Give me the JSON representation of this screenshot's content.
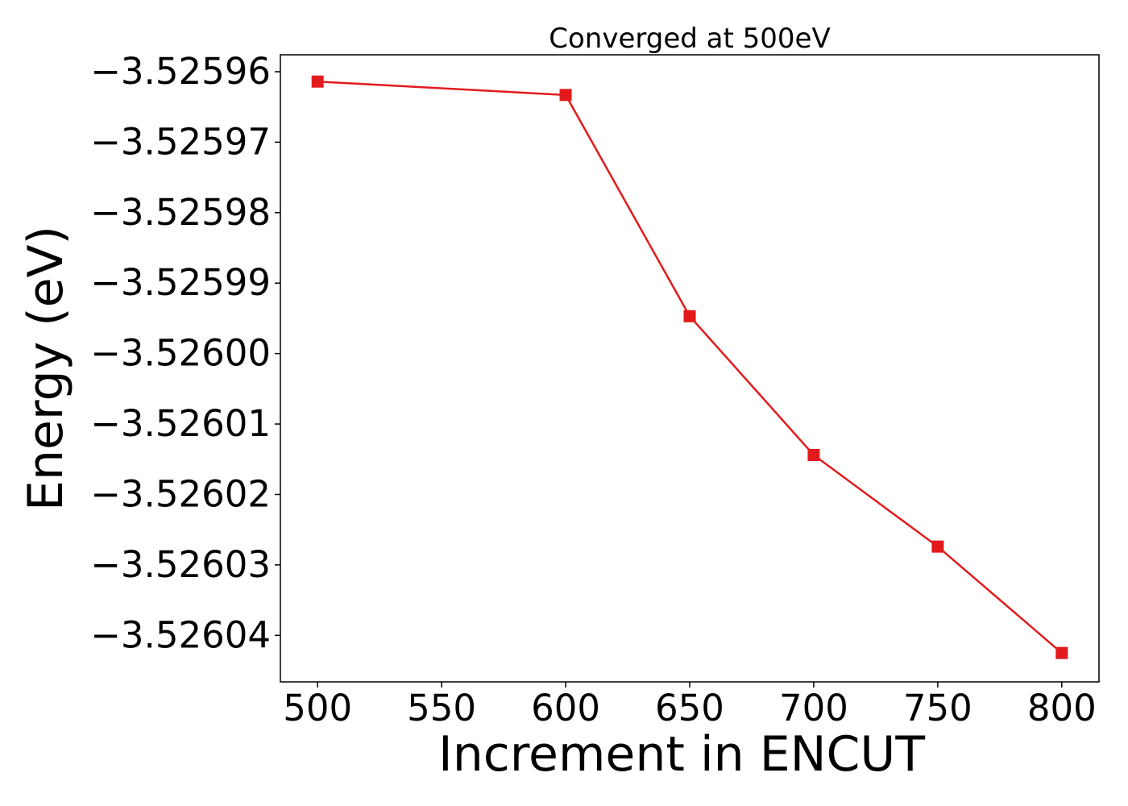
{
  "chart_data": {
    "type": "line",
    "title": "Converged at 500eV",
    "xlabel": "Increment in ENCUT",
    "ylabel": "Energy (eV)",
    "x": [
      500,
      600,
      650,
      700,
      750,
      800
    ],
    "series": [
      {
        "values": [
          -3.5259614,
          -3.5259633,
          -3.5259947,
          -3.5260144,
          -3.5260274,
          -3.5260425
        ]
      }
    ],
    "xlim": [
      485,
      815
    ],
    "ylim": [
      -3.5260466,
      -3.5259576
    ],
    "xticks": [
      500,
      550,
      600,
      650,
      700,
      750,
      800
    ],
    "xtick_labels": [
      "500",
      "550",
      "600",
      "650",
      "700",
      "750",
      "800"
    ],
    "yticks": [
      -3.52596,
      -3.52597,
      -3.52598,
      -3.52599,
      -3.526,
      -3.52601,
      -3.52602,
      -3.52603,
      -3.52604
    ],
    "ytick_labels": [
      "−3.52596",
      "−3.52597",
      "−3.52598",
      "−3.52599",
      "−3.52600",
      "−3.52601",
      "−3.52602",
      "−3.52603",
      "−3.52604"
    ],
    "marker": "square",
    "grid": false,
    "colors": {
      "line": "#e31a1c",
      "axes": "#000000",
      "background": "#ffffff"
    }
  }
}
